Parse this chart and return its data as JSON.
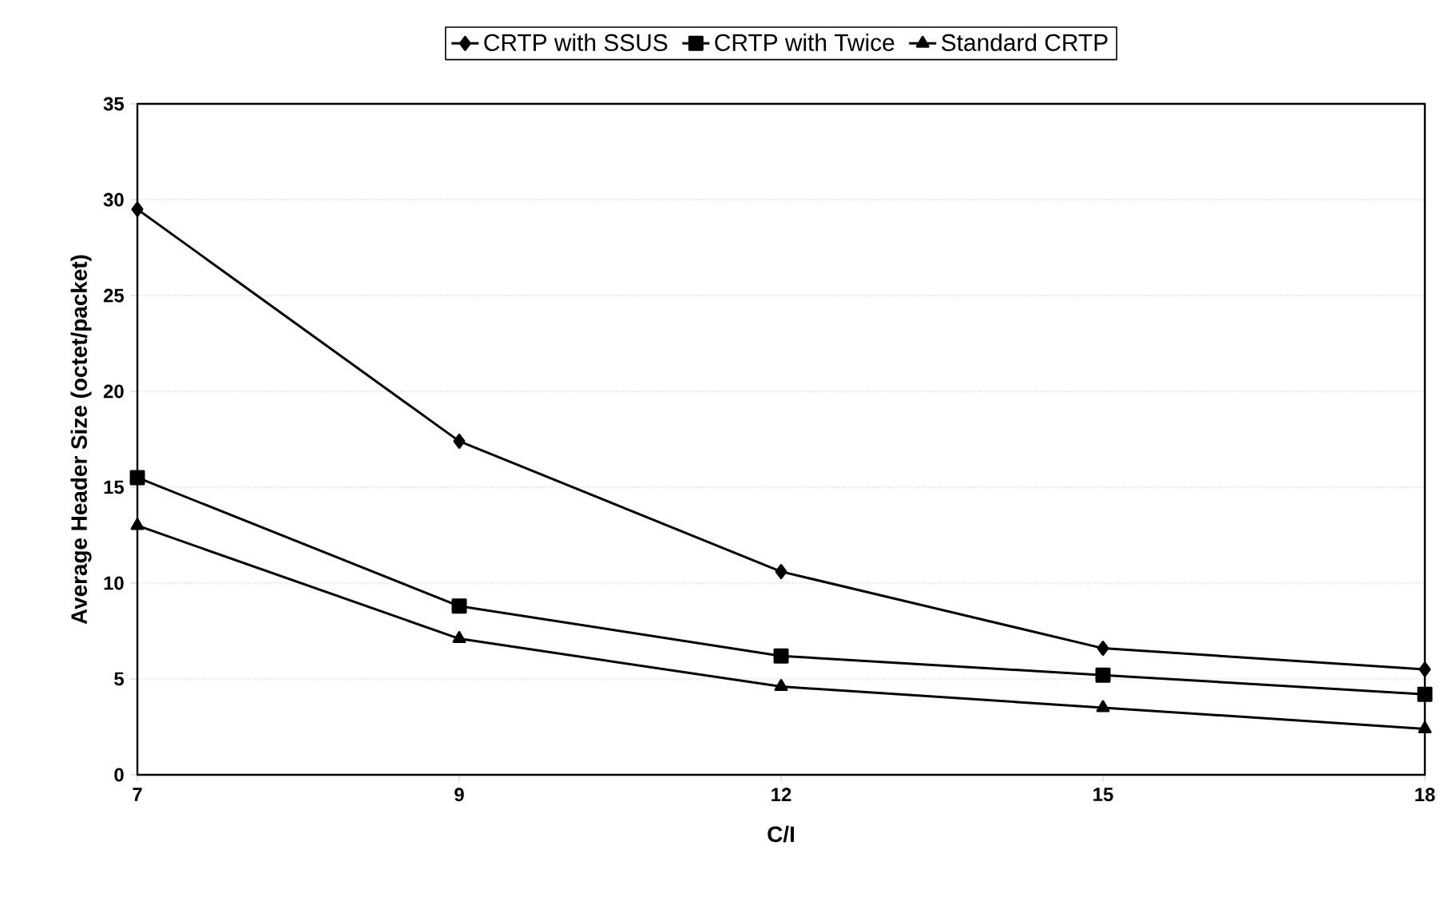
{
  "chart_data": {
    "type": "line",
    "xlabel": "C/I",
    "ylabel": "Average Header Size (octet/packet)",
    "categories": [
      "7",
      "9",
      "12",
      "15",
      "18"
    ],
    "series": [
      {
        "name": "CRTP with SSUS",
        "color": "#000000",
        "marker": "diamond",
        "values": [
          29.5,
          17.4,
          10.6,
          6.6,
          5.5
        ]
      },
      {
        "name": "CRTP with Twice",
        "color": "#000000",
        "marker": "square",
        "values": [
          15.5,
          8.8,
          6.2,
          5.2,
          4.2
        ]
      },
      {
        "name": "Standard CRTP",
        "color": "#000000",
        "marker": "triangle",
        "values": [
          13.0,
          7.1,
          4.6,
          3.5,
          2.4
        ]
      }
    ],
    "ylim": [
      0,
      35
    ],
    "yticks": [
      0,
      5,
      10,
      15,
      20,
      25,
      30,
      35
    ],
    "grid": "y",
    "legend": "top",
    "line_style": "solid"
  }
}
